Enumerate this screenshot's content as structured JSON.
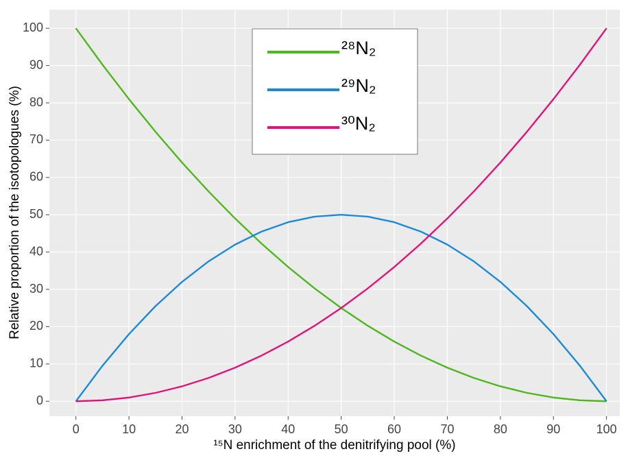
{
  "chart_data": {
    "type": "line",
    "xlabel": "¹⁵N enrichment of the denitrifying pool (%)",
    "ylabel": "Relative proportion of the isotopologues (%)",
    "x": [
      0,
      5,
      10,
      15,
      20,
      25,
      30,
      35,
      40,
      45,
      50,
      55,
      60,
      65,
      70,
      75,
      80,
      85,
      90,
      95,
      100
    ],
    "series": [
      {
        "name": "²⁸N₂",
        "color": "#4cb81c",
        "values": [
          100,
          90.25,
          81,
          72.25,
          64,
          56.25,
          49,
          42.25,
          36,
          30.25,
          25,
          20.25,
          16,
          12.25,
          9,
          6.25,
          4,
          2.25,
          1,
          0.25,
          0
        ]
      },
      {
        "name": "²⁹N₂",
        "color": "#1a8ad8",
        "values": [
          0,
          9.5,
          18,
          25.5,
          32,
          37.5,
          42,
          45.5,
          48,
          49.5,
          50,
          49.5,
          48,
          45.5,
          42,
          37.5,
          32,
          25.5,
          18,
          9.5,
          0
        ]
      },
      {
        "name": "³⁰N₂",
        "color": "#e0137a",
        "values": [
          0,
          0.25,
          1,
          2.25,
          4,
          6.25,
          9,
          12.25,
          16,
          20.25,
          25,
          30.25,
          36,
          42.25,
          49,
          56.25,
          64,
          72.25,
          81,
          90.25,
          100
        ]
      }
    ],
    "xlim": [
      -5,
      102.5
    ],
    "xticks": [
      0,
      10,
      20,
      30,
      40,
      50,
      60,
      70,
      80,
      90,
      100
    ],
    "ylim": [
      -4,
      105
    ],
    "yticks": [
      0,
      10,
      20,
      30,
      40,
      50,
      60,
      70,
      80,
      90,
      100
    ],
    "grid": true
  }
}
